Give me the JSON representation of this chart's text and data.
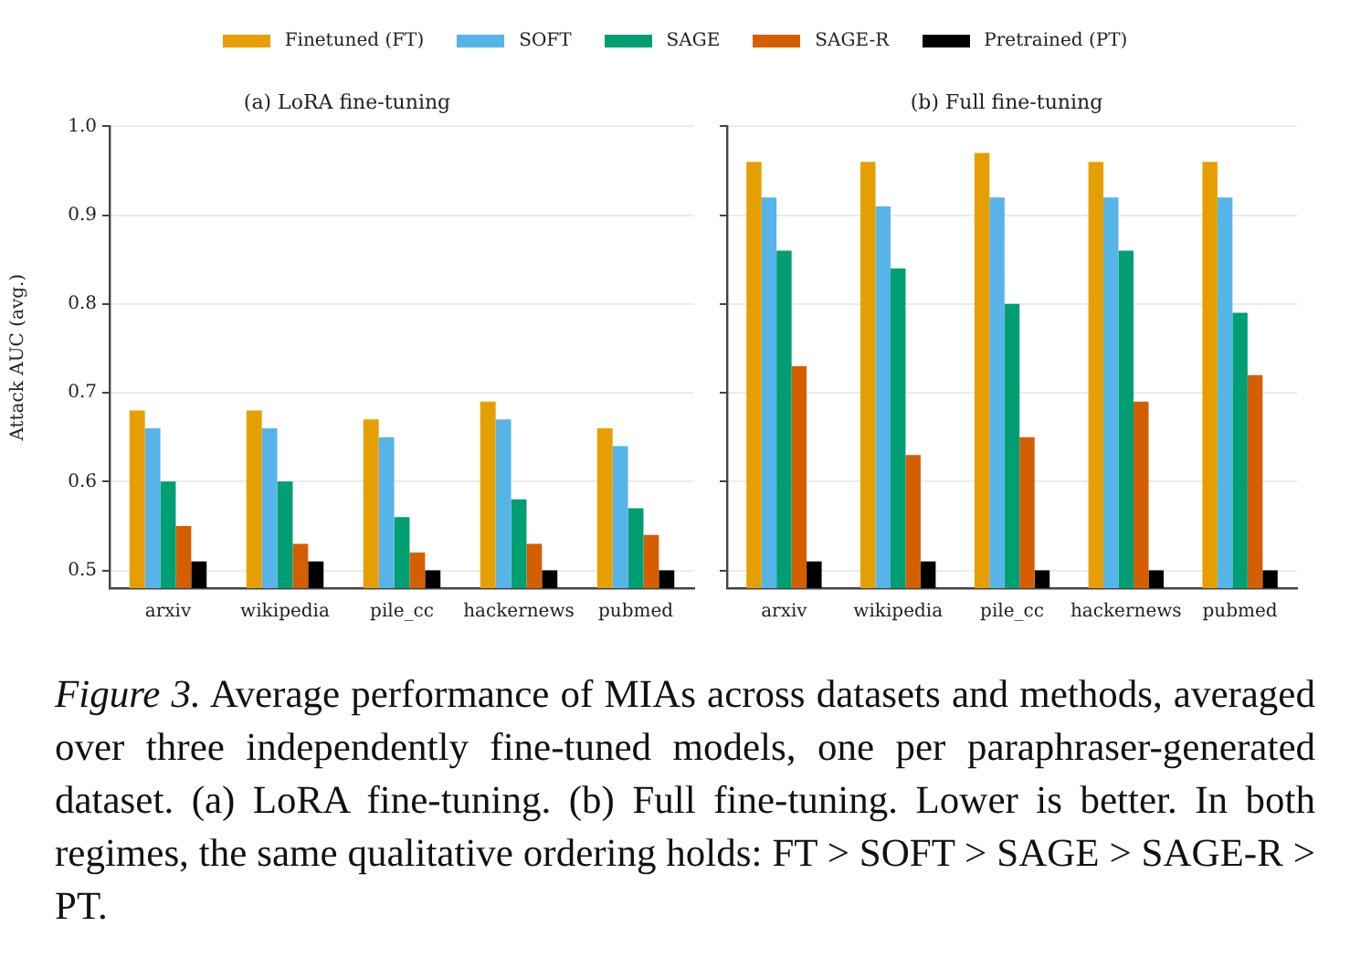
{
  "chart_data": [
    {
      "type": "bar",
      "title": "(a) LoRA fine-tuning",
      "ylabel": "Attack AUC (avg.)",
      "categories": [
        "arxiv",
        "wikipedia",
        "pile_cc",
        "hackernews",
        "pubmed"
      ],
      "series": [
        {
          "name": "Finetuned (FT)",
          "color": "#e69f00",
          "values": [
            0.68,
            0.68,
            0.67,
            0.69,
            0.66
          ]
        },
        {
          "name": "SOFT",
          "color": "#56b4e9",
          "values": [
            0.66,
            0.66,
            0.65,
            0.67,
            0.64
          ]
        },
        {
          "name": "SAGE",
          "color": "#009e73",
          "values": [
            0.6,
            0.6,
            0.56,
            0.58,
            0.57
          ]
        },
        {
          "name": "SAGE-R",
          "color": "#d55e00",
          "values": [
            0.55,
            0.53,
            0.52,
            0.53,
            0.54
          ]
        },
        {
          "name": "Pretrained (PT)",
          "color": "#000000",
          "values": [
            0.51,
            0.51,
            0.5,
            0.5,
            0.5
          ]
        }
      ],
      "ylim": [
        0.48,
        1.0
      ],
      "yticks": [
        {
          "value": 0.5,
          "label": "0.5"
        },
        {
          "value": 0.6,
          "label": "0.6"
        },
        {
          "value": 0.7,
          "label": "0.7"
        },
        {
          "value": 0.8,
          "label": "0.8"
        },
        {
          "value": 0.9,
          "label": "0.9"
        },
        {
          "value": 1.0,
          "label": "1.0"
        }
      ],
      "grid": "y",
      "legend": "top",
      "annotations": [
        "Figure 3.",
        "Average performance of MIAs across datasets and methods, averaged over three independently fine-tuned models, one per paraphraser-generated dataset. (a) LoRA fine-tuning. (b) Full fine-tuning. Lower is better. In both regimes, the same qualitative ordering holds: FT > SOFT > SAGE > SAGE-R > PT."
      ]
    },
    {
      "type": "bar",
      "title": "(b) Full fine-tuning",
      "categories": [
        "arxiv",
        "wikipedia",
        "pile_cc",
        "hackernews",
        "pubmed"
      ],
      "series": [
        {
          "color": "#e69f00",
          "values": [
            0.96,
            0.96,
            0.97,
            0.96,
            0.96
          ]
        },
        {
          "color": "#56b4e9",
          "values": [
            0.92,
            0.91,
            0.92,
            0.92,
            0.92
          ]
        },
        {
          "color": "#009e73",
          "values": [
            0.86,
            0.84,
            0.8,
            0.86,
            0.79
          ]
        },
        {
          "color": "#d55e00",
          "values": [
            0.73,
            0.63,
            0.65,
            0.69,
            0.72
          ]
        },
        {
          "color": "#000000",
          "values": [
            0.51,
            0.51,
            0.5,
            0.5,
            0.5
          ]
        }
      ],
      "ylim": [
        0.48,
        1.0
      ],
      "yticks": [
        {
          "value": 0.5,
          "label": null
        },
        {
          "value": 0.6,
          "label": null
        },
        {
          "value": 0.7,
          "label": null
        },
        {
          "value": 0.8,
          "label": null
        },
        {
          "value": 0.9,
          "label": null
        },
        {
          "value": 1.0,
          "label": null
        }
      ],
      "grid": "y",
      "tick_labels": "x"
    }
  ]
}
